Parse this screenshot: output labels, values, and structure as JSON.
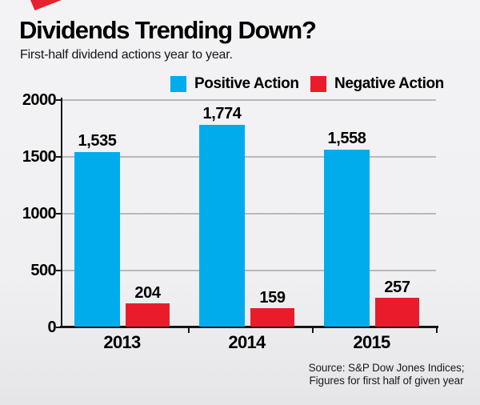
{
  "header": {
    "title": "Dividends Trending Down?",
    "subtitle": "First-half dividend actions year to year."
  },
  "legend": [
    {
      "label": "Positive Action",
      "color": "#00ACEC"
    },
    {
      "label": "Negative Action",
      "color": "#EA1C2C"
    }
  ],
  "chart_data": {
    "type": "bar",
    "title": "Dividends Trending Down?",
    "subtitle": "First-half dividend actions year to year.",
    "categories": [
      "2013",
      "2014",
      "2015"
    ],
    "series": [
      {
        "name": "Positive Action",
        "color": "#00ACEC",
        "values": [
          1535,
          1774,
          1558
        ],
        "labels": [
          "1,535",
          "1,774",
          "1,558"
        ]
      },
      {
        "name": "Negative Action",
        "color": "#EA1C2C",
        "values": [
          204,
          159,
          257
        ],
        "labels": [
          "204",
          "159",
          "257"
        ]
      }
    ],
    "ylim": [
      0,
      2000
    ],
    "yticks": [
      0,
      500,
      1000,
      1500,
      2000
    ],
    "ytick_labels": [
      "0",
      "500",
      "1000",
      "1500",
      "2000"
    ],
    "grid": true,
    "legend_position": "top",
    "xlabel": "",
    "ylabel": ""
  },
  "source": {
    "line1": "Source: S&P Dow Jones Indices;",
    "line2": "Figures for first half of given year"
  },
  "colors": {
    "positive": "#00ACEC",
    "negative": "#EA1C2C",
    "triangle": "#E8212E",
    "gridline": "#B9B9BC",
    "axis": "#141414",
    "background_top": "#F3F3F5",
    "background_bottom": "#E6E6E9"
  }
}
